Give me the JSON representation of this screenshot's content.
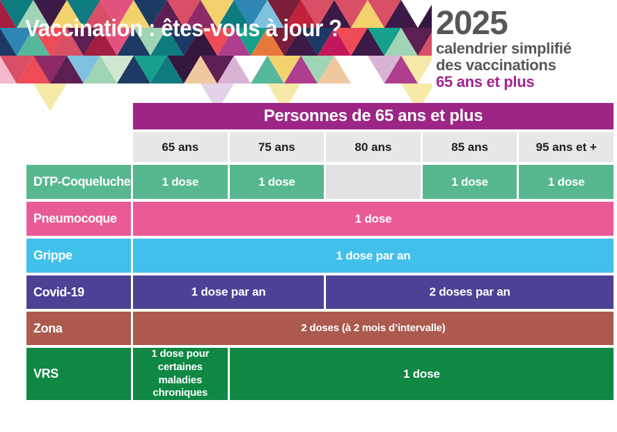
{
  "banner": {
    "title": "Vaccination : êtes-vous à jour ?",
    "palette": [
      "#c0223b",
      "#a31e40",
      "#e2547e",
      "#c2185b",
      "#8e2b66",
      "#5c1f52",
      "#3c1a45",
      "#7b1e3a",
      "#17a08c",
      "#0e7b7f",
      "#55b79b",
      "#9fd4b4",
      "#2e86b5",
      "#1d3a64",
      "#7fc2e0",
      "#e8793e",
      "#f0a566",
      "#f3d26e",
      "#ae3e8e",
      "#d94f65",
      "#9cc87a",
      "#d9e6a8",
      "#35173d",
      "#ef4b57"
    ],
    "light_palette": [
      "#f2b8cc",
      "#e8a0be",
      "#d9b3d4",
      "#f5e6c0",
      "#f7e9a8",
      "#cfe6d0",
      "#f0c8a0",
      "#e4d3e8"
    ]
  },
  "header_block": {
    "year": "2025",
    "subtitle_line1": "calendrier simplifié",
    "subtitle_line2": "des vaccinations",
    "audience": "65 ans et plus",
    "year_color": "#575756",
    "audience_color": "#a3238e"
  },
  "table": {
    "header": "Personnes de 65 ans et plus",
    "header_bg": "#9c2585",
    "age_row_bg": "#e7e7e7",
    "empty_cell_color": "#e2e2e2",
    "age_columns": [
      "65 ans",
      "75 ans",
      "80 ans",
      "85 ans",
      "95 ans et +"
    ],
    "rows": [
      {
        "label": "DTP-Coqueluche",
        "color": "#57b78e",
        "cells": [
          {
            "text": "1 dose",
            "span": 1
          },
          {
            "text": "1 dose",
            "span": 1
          },
          {
            "text": "",
            "span": 1,
            "empty": true
          },
          {
            "text": "1 dose",
            "span": 1
          },
          {
            "text": "1 dose",
            "span": 1
          }
        ]
      },
      {
        "label": "Pneumocoque",
        "color": "#ea5b96",
        "cells": [
          {
            "text": "1 dose",
            "span": 5
          }
        ]
      },
      {
        "label": "Grippe",
        "color": "#41c0eb",
        "cells": [
          {
            "text": "1 dose par an",
            "span": 5
          }
        ]
      },
      {
        "label": "Covid-19",
        "color": "#4b4295",
        "cells": [
          {
            "text": "1 dose par an",
            "span": 2
          },
          {
            "text": "2 doses par an",
            "span": 3
          }
        ]
      },
      {
        "label": "Zona",
        "color": "#ab5a4d",
        "cells": [
          {
            "text": "2 doses (à 2 mois d’intervalle)",
            "span": 5
          }
        ]
      },
      {
        "label": "VRS",
        "color": "#0e8843",
        "cells": [
          {
            "text": "1 dose pour certaines maladies chroniques",
            "span": 1
          },
          {
            "text": "1 dose",
            "span": 4
          }
        ]
      }
    ]
  }
}
